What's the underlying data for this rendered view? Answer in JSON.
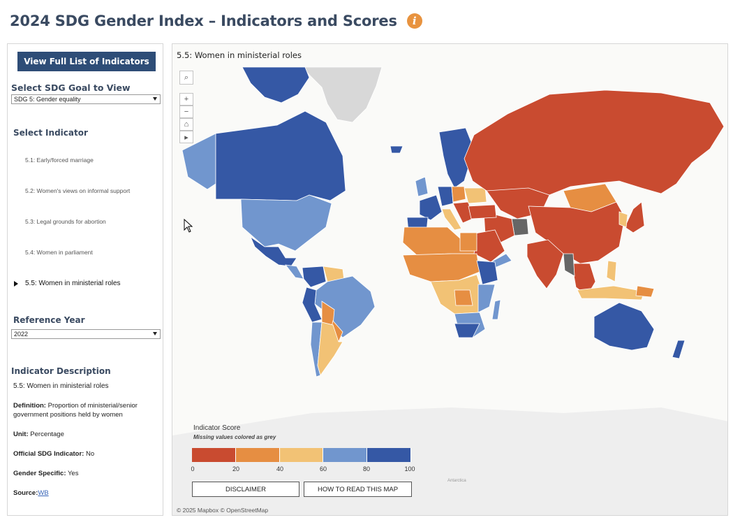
{
  "header": {
    "title": "2024 SDG Gender Index – Indicators and Scores",
    "info_icon": "info-icon",
    "info_glyph": "i",
    "accent_color": "#e8933f"
  },
  "sidebar": {
    "full_list_button": "View Full List of Indicators",
    "goal_label": "Select SDG Goal to View Indicators",
    "goal_value": "SDG 5: Gender equality",
    "indicator_label": "Select Indicator",
    "indicators": [
      "5.1: Early/forced marriage",
      "5.2: Women's views on informal support",
      "5.3: Legal grounds for abortion",
      "5.4: Women in parliament",
      "5.5: Women in ministerial roles"
    ],
    "selected_indicator_index": 4,
    "year_label": "Reference Year",
    "year_value": "2022",
    "description": {
      "heading": "Indicator Description",
      "name": "5.5: Women in ministerial roles",
      "definition_label": "Definition:",
      "definition_text": " Proportion of ministerial/senior government positions held by women",
      "unit_label": "Unit:",
      "unit_text": " Percentage",
      "official_label": "Official SDG Indicator:",
      "official_text": " No",
      "gender_label": "Gender Specific:",
      "gender_text": " Yes",
      "source_label": "Source:",
      "source_link": "WB"
    }
  },
  "map": {
    "title": "5.5: Women in ministerial roles",
    "controls": [
      "search-icon",
      "zoom-in-icon",
      "zoom-out-icon",
      "home-icon",
      "play-icon"
    ],
    "zoom_in": "+",
    "zoom_out": "−",
    "legend": {
      "title": "Indicator Score",
      "subtitle": "Missing values colored as grey",
      "colors": [
        "#c94b30",
        "#e68e42",
        "#f2c275",
        "#7196ce",
        "#3558a5"
      ],
      "ticks": [
        "0",
        "20",
        "40",
        "60",
        "80",
        "100"
      ],
      "missing_color": "#d8d8d8"
    },
    "disclaimer_button": "DISCLAIMER",
    "howto_button": "HOW TO READ THIS MAP",
    "attribution": "© 2025 Mapbox  © OpenStreetMap",
    "antarctica_label": "Antarctica"
  }
}
